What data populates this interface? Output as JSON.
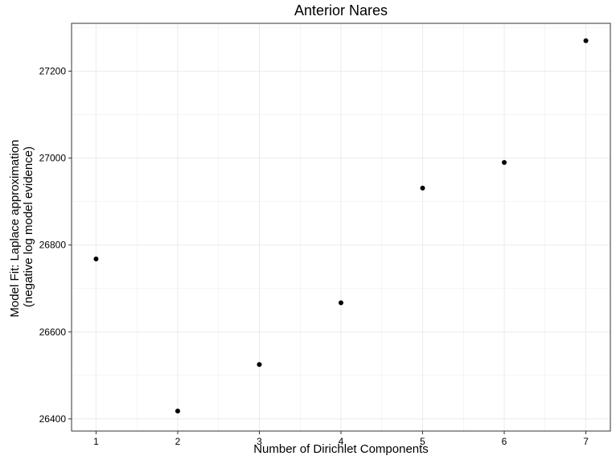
{
  "chart_data": {
    "type": "scatter",
    "title": "Anterior Nares",
    "xlabel": "Number of Dirichlet Components",
    "ylabel_line1": "Model Fit: Laplace approximation",
    "ylabel_line2": "(negative log model evidence)",
    "x": [
      1,
      2,
      3,
      4,
      5,
      6,
      7
    ],
    "y": [
      26768,
      26418,
      26525,
      26667,
      26931,
      26990,
      27270
    ],
    "xticks": [
      1,
      2,
      3,
      4,
      5,
      6,
      7
    ],
    "yticks": [
      26400,
      26600,
      26800,
      27000,
      27200
    ],
    "xlim": [
      0.7,
      7.3
    ],
    "ylim": [
      26372,
      27310
    ],
    "grid": true,
    "legend": "none",
    "colors": {
      "point": "#000000",
      "grid": "#ebebeb",
      "panel_border": "#333333"
    }
  }
}
